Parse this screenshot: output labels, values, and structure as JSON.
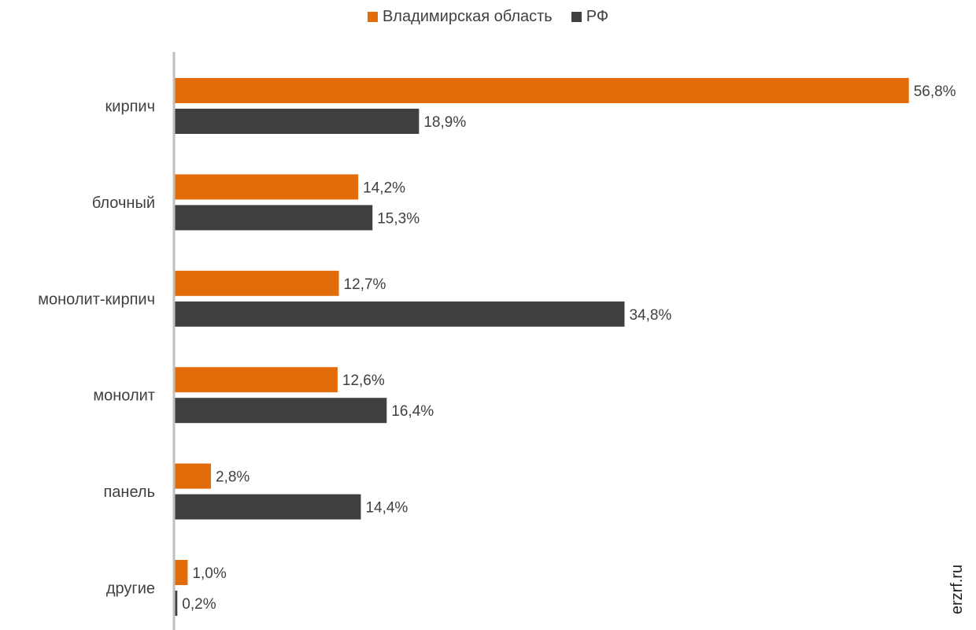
{
  "chart_data": {
    "type": "bar",
    "orientation": "horizontal",
    "categories": [
      "кирпич",
      "блочный",
      "монолит-кирпич",
      "монолит",
      "панель",
      "другие"
    ],
    "series": [
      {
        "name": "Владимирская область",
        "color": "#E36C0A",
        "values": [
          56.8,
          14.2,
          12.7,
          12.6,
          2.8,
          1.0
        ],
        "labels": [
          "56,8%",
          "14,2%",
          "12,7%",
          "12,6%",
          "2,8%",
          "1,0%"
        ]
      },
      {
        "name": "РФ",
        "color": "#404040",
        "values": [
          18.9,
          15.3,
          34.8,
          16.4,
          14.4,
          0.2
        ],
        "labels": [
          "18,9%",
          "15,3%",
          "34,8%",
          "16,4%",
          "14,4%",
          "0,2%"
        ]
      }
    ],
    "xlim": [
      0,
      57
    ],
    "grid": false,
    "legend_position": "top"
  },
  "watermark": "erzrf.ru"
}
